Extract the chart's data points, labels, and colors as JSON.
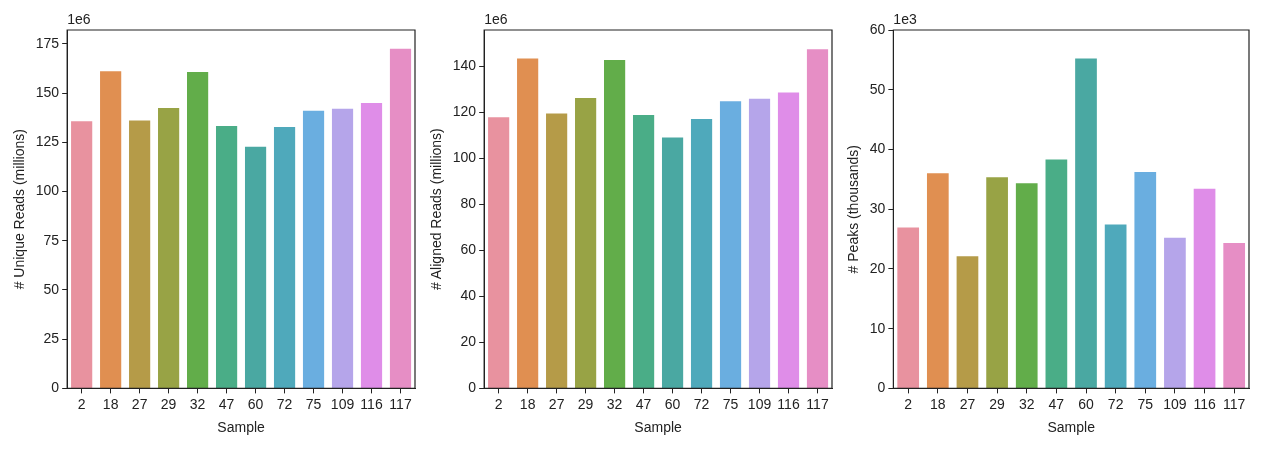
{
  "chart_data": [
    {
      "type": "bar",
      "xlabel": "Sample",
      "ylabel": "# Unique Reads (millions)",
      "annotations": [
        "1e6"
      ],
      "categories": [
        "2",
        "18",
        "27",
        "29",
        "32",
        "47",
        "60",
        "72",
        "75",
        "109",
        "116",
        "117"
      ],
      "values": [
        136.2,
        161.5,
        136.5,
        142.9,
        161.2,
        133.7,
        123.2,
        133.2,
        141.5,
        142.5,
        145.5,
        173.0
      ],
      "colors": [
        "#e8929f",
        "#e08f51",
        "#b59b48",
        "#98a345",
        "#62ad4a",
        "#4aad87",
        "#4aa8a2",
        "#4fa9bb",
        "#6aaee0",
        "#b5a5ea",
        "#df8de8",
        "#e68ec5"
      ],
      "ylim": [
        0,
        182
      ],
      "yticks": [
        0,
        25,
        50,
        75,
        100,
        125,
        150,
        175
      ],
      "grid": false,
      "legend": false
    },
    {
      "type": "bar",
      "xlabel": "Sample",
      "ylabel": "# Aligned Reads (millions)",
      "annotations": [
        "1e6"
      ],
      "categories": [
        "2",
        "18",
        "27",
        "29",
        "32",
        "47",
        "60",
        "72",
        "75",
        "109",
        "116",
        "117"
      ],
      "values": [
        118.2,
        143.7,
        119.9,
        126.6,
        143.1,
        119.2,
        109.4,
        117.5,
        125.2,
        126.3,
        129.0,
        147.8
      ],
      "colors": [
        "#e8929f",
        "#e08f51",
        "#b59b48",
        "#98a345",
        "#62ad4a",
        "#4aad87",
        "#4aa8a2",
        "#4fa9bb",
        "#6aaee0",
        "#b5a5ea",
        "#df8de8",
        "#e68ec5"
      ],
      "ylim": [
        0,
        155.7
      ],
      "yticks": [
        0,
        20,
        40,
        60,
        80,
        100,
        120,
        140
      ],
      "grid": false,
      "legend": false
    },
    {
      "type": "bar",
      "xlabel": "Sample",
      "ylabel": "# Peaks (thousands)",
      "annotations": [
        "1e3"
      ],
      "categories": [
        "2",
        "18",
        "27",
        "29",
        "32",
        "47",
        "60",
        "72",
        "75",
        "109",
        "116",
        "117"
      ],
      "values": [
        27.1,
        36.2,
        22.3,
        35.5,
        34.5,
        38.5,
        55.4,
        27.6,
        36.4,
        25.4,
        33.6,
        24.5
      ],
      "colors": [
        "#e8929f",
        "#e08f51",
        "#b59b48",
        "#98a345",
        "#62ad4a",
        "#4aad87",
        "#4aa8a2",
        "#4fa9bb",
        "#6aaee0",
        "#b5a5ea",
        "#df8de8",
        "#e68ec5"
      ],
      "ylim": [
        0,
        60
      ],
      "yticks": [
        0,
        10,
        20,
        30,
        40,
        50,
        60
      ],
      "grid": false,
      "legend": false
    }
  ]
}
